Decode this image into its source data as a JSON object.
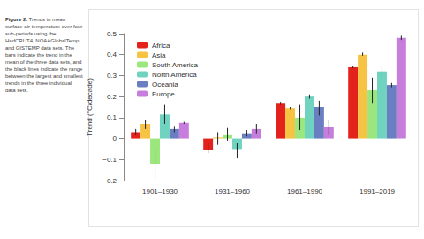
{
  "chart_data": {
    "type": "bar",
    "title": "Figure 2.",
    "caption": "Trends in mean surface air temperature over four sub-periods using the HadCRUT4, NOAAGlobalTemp and GISTEMP data sets. The bars indicate the trend in the mean of the three data sets, and the black lines indicate the range between the largest and smallest trends in the three individual data sets.",
    "y_label": "Trend (°C/decade)",
    "categories": [
      "1901–1930",
      "1931–1960",
      "1961–1990",
      "1991–2019"
    ],
    "series": [
      {
        "name": "Africa",
        "color": "#e3221b",
        "values": [
          0.03,
          -0.055,
          0.17,
          0.34
        ],
        "error_low": [
          0.02,
          -0.07,
          0.16,
          0.335
        ],
        "error_high": [
          0.045,
          -0.02,
          0.175,
          0.345
        ]
      },
      {
        "name": "Asia",
        "color": "#f6c342",
        "values": [
          0.07,
          0.005,
          0.145,
          0.4
        ],
        "error_low": [
          0.045,
          -0.03,
          0.14,
          0.395
        ],
        "error_high": [
          0.09,
          0.03,
          0.15,
          0.41
        ]
      },
      {
        "name": "South America",
        "color": "#9be77e",
        "values": [
          -0.12,
          0.02,
          0.1,
          0.23
        ],
        "error_low": [
          -0.2,
          -0.01,
          0.04,
          0.17
        ],
        "error_high": [
          -0.04,
          0.05,
          0.16,
          0.29
        ]
      },
      {
        "name": "North America",
        "color": "#6fd3c0",
        "values": [
          0.115,
          -0.05,
          0.2,
          0.32
        ],
        "error_low": [
          0.07,
          -0.095,
          0.19,
          0.29
        ],
        "error_high": [
          0.16,
          -0.02,
          0.21,
          0.345
        ]
      },
      {
        "name": "Oceania",
        "color": "#6a7fc1",
        "values": [
          0.045,
          0.025,
          0.15,
          0.255
        ],
        "error_low": [
          0.03,
          0.01,
          0.11,
          0.245
        ],
        "error_high": [
          0.06,
          0.04,
          0.18,
          0.265
        ]
      },
      {
        "name": "Europe",
        "color": "#c77ddb",
        "values": [
          0.075,
          0.045,
          0.055,
          0.48
        ],
        "error_low": [
          0.07,
          0.025,
          0.02,
          0.47
        ],
        "error_high": [
          0.08,
          0.07,
          0.09,
          0.49
        ]
      }
    ],
    "ylim": [
      -0.2,
      0.5
    ],
    "yticks": [
      {
        "value": -0.2,
        "label": "−0.2"
      },
      {
        "value": -0.1,
        "label": "−0.1"
      },
      0,
      0.1,
      0.2,
      0.3,
      0.4,
      0.5
    ],
    "grid": false,
    "legend": "upper left"
  }
}
